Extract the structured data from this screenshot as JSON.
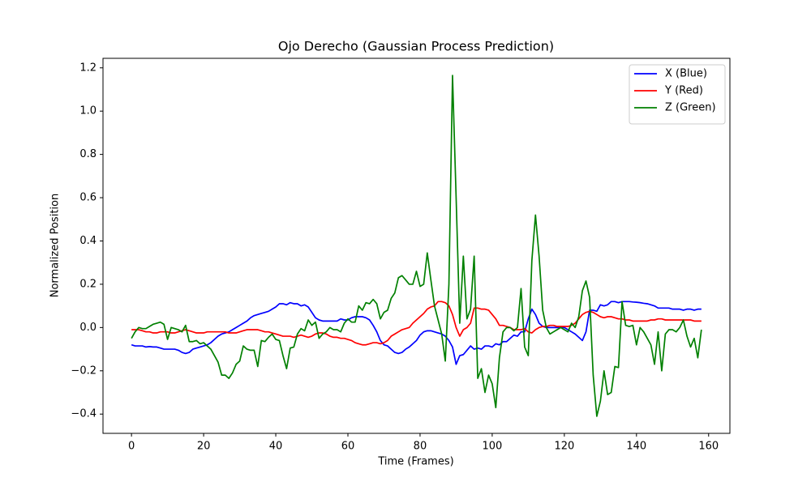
{
  "chart_data": {
    "type": "line",
    "title": "Ojo Derecho (Gaussian Process Prediction)",
    "x_label": "Time (Frames)",
    "y_label": "Normalized Position",
    "x": [
      0,
      1,
      2,
      3,
      4,
      5,
      6,
      7,
      8,
      9,
      10,
      11,
      12,
      13,
      14,
      15,
      16,
      17,
      18,
      19,
      20,
      21,
      22,
      23,
      24,
      25,
      26,
      27,
      28,
      29,
      30,
      31,
      32,
      33,
      34,
      35,
      36,
      37,
      38,
      39,
      40,
      41,
      42,
      43,
      44,
      45,
      46,
      47,
      48,
      49,
      50,
      51,
      52,
      53,
      54,
      55,
      56,
      57,
      58,
      59,
      60,
      61,
      62,
      63,
      64,
      65,
      66,
      67,
      68,
      69,
      70,
      71,
      72,
      73,
      74,
      75,
      76,
      77,
      78,
      79,
      80,
      81,
      82,
      83,
      84,
      85,
      86,
      87,
      88,
      89,
      90,
      91,
      92,
      93,
      94,
      95,
      96,
      97,
      98,
      99,
      100,
      101,
      102,
      103,
      104,
      105,
      106,
      107,
      108,
      109,
      110,
      111,
      112,
      113,
      114,
      115,
      116,
      117,
      118,
      119,
      120,
      121,
      122,
      123,
      124,
      125,
      126,
      127,
      128,
      129,
      130,
      131,
      132,
      133,
      134,
      135,
      136,
      137,
      138,
      139,
      140,
      141,
      142,
      143,
      144,
      145,
      146,
      147,
      148,
      149,
      150,
      151,
      152,
      153,
      154,
      155,
      156,
      157,
      158
    ],
    "series": [
      {
        "name": "X (Blue)",
        "color": "#0000ff",
        "values": [
          -0.08,
          -0.085,
          -0.085,
          -0.085,
          -0.09,
          -0.088,
          -0.09,
          -0.09,
          -0.095,
          -0.1,
          -0.1,
          -0.1,
          -0.1,
          -0.105,
          -0.115,
          -0.12,
          -0.115,
          -0.1,
          -0.095,
          -0.09,
          -0.085,
          -0.08,
          -0.07,
          -0.055,
          -0.04,
          -0.03,
          -0.025,
          -0.02,
          -0.01,
          0.0,
          0.01,
          0.02,
          0.03,
          0.045,
          0.055,
          0.06,
          0.065,
          0.07,
          0.075,
          0.085,
          0.095,
          0.11,
          0.11,
          0.105,
          0.115,
          0.11,
          0.11,
          0.1,
          0.105,
          0.095,
          0.07,
          0.045,
          0.035,
          0.03,
          0.03,
          0.03,
          0.03,
          0.03,
          0.04,
          0.035,
          0.035,
          0.045,
          0.05,
          0.05,
          0.05,
          0.045,
          0.035,
          0.01,
          -0.02,
          -0.06,
          -0.08,
          -0.085,
          -0.1,
          -0.115,
          -0.12,
          -0.115,
          -0.1,
          -0.09,
          -0.075,
          -0.06,
          -0.035,
          -0.02,
          -0.015,
          -0.015,
          -0.02,
          -0.025,
          -0.03,
          -0.04,
          -0.06,
          -0.09,
          -0.17,
          -0.13,
          -0.125,
          -0.105,
          -0.085,
          -0.1,
          -0.095,
          -0.1,
          -0.085,
          -0.085,
          -0.09,
          -0.075,
          -0.08,
          -0.065,
          -0.065,
          -0.05,
          -0.035,
          -0.04,
          -0.02,
          -0.02,
          0.04,
          0.085,
          0.06,
          0.02,
          0.005,
          0.0,
          0.0,
          0.0,
          0.0,
          0.0,
          0.0,
          -0.01,
          -0.02,
          -0.03,
          -0.045,
          -0.06,
          -0.02,
          0.08,
          0.08,
          0.075,
          0.105,
          0.1,
          0.105,
          0.12,
          0.12,
          0.115,
          0.12,
          0.12,
          0.12,
          0.118,
          0.117,
          0.115,
          0.112,
          0.11,
          0.105,
          0.1,
          0.09,
          0.09,
          0.09,
          0.09,
          0.085,
          0.085,
          0.085,
          0.08,
          0.085,
          0.085,
          0.08,
          0.085,
          0.085
        ]
      },
      {
        "name": "Y (Red)",
        "color": "#ff0000",
        "values": [
          -0.01,
          -0.01,
          -0.01,
          -0.015,
          -0.02,
          -0.02,
          -0.025,
          -0.025,
          -0.02,
          -0.02,
          -0.02,
          -0.025,
          -0.025,
          -0.02,
          -0.015,
          -0.01,
          -0.015,
          -0.02,
          -0.025,
          -0.025,
          -0.025,
          -0.02,
          -0.02,
          -0.02,
          -0.02,
          -0.02,
          -0.02,
          -0.025,
          -0.025,
          -0.025,
          -0.02,
          -0.015,
          -0.01,
          -0.01,
          -0.01,
          -0.01,
          -0.015,
          -0.02,
          -0.02,
          -0.025,
          -0.03,
          -0.035,
          -0.04,
          -0.04,
          -0.04,
          -0.045,
          -0.04,
          -0.035,
          -0.04,
          -0.045,
          -0.04,
          -0.03,
          -0.025,
          -0.025,
          -0.03,
          -0.04,
          -0.045,
          -0.045,
          -0.05,
          -0.05,
          -0.055,
          -0.06,
          -0.07,
          -0.075,
          -0.08,
          -0.08,
          -0.075,
          -0.07,
          -0.07,
          -0.075,
          -0.07,
          -0.06,
          -0.04,
          -0.03,
          -0.02,
          -0.01,
          -0.005,
          0.0,
          0.02,
          0.035,
          0.05,
          0.065,
          0.085,
          0.095,
          0.1,
          0.12,
          0.12,
          0.115,
          0.1,
          0.06,
          0.0,
          -0.04,
          -0.01,
          0.0,
          0.02,
          0.09,
          0.09,
          0.085,
          0.085,
          0.08,
          0.06,
          0.04,
          0.01,
          0.01,
          0.005,
          0.0,
          -0.01,
          -0.01,
          -0.01,
          -0.005,
          -0.02,
          -0.025,
          -0.01,
          0.0,
          0.005,
          0.005,
          0.01,
          0.01,
          0.005,
          0.005,
          0.005,
          0.005,
          0.01,
          0.02,
          0.04,
          0.06,
          0.07,
          0.075,
          0.07,
          0.06,
          0.05,
          0.045,
          0.05,
          0.05,
          0.045,
          0.04,
          0.04,
          0.035,
          0.035,
          0.03,
          0.03,
          0.03,
          0.03,
          0.03,
          0.035,
          0.035,
          0.04,
          0.04,
          0.035,
          0.035,
          0.035,
          0.035,
          0.035,
          0.035,
          0.035,
          0.035,
          0.03,
          0.03,
          0.03
        ]
      },
      {
        "name": "Z (Green)",
        "color": "#008000",
        "values": [
          -0.05,
          -0.02,
          0.0,
          -0.005,
          -0.005,
          0.005,
          0.015,
          0.02,
          0.025,
          0.015,
          -0.055,
          0.0,
          -0.005,
          -0.01,
          -0.02,
          0.01,
          -0.065,
          -0.065,
          -0.06,
          -0.075,
          -0.07,
          -0.085,
          -0.1,
          -0.13,
          -0.16,
          -0.22,
          -0.22,
          -0.235,
          -0.21,
          -0.17,
          -0.155,
          -0.085,
          -0.1,
          -0.105,
          -0.105,
          -0.18,
          -0.06,
          -0.065,
          -0.045,
          -0.03,
          -0.055,
          -0.06,
          -0.13,
          -0.19,
          -0.095,
          -0.09,
          -0.03,
          -0.005,
          -0.015,
          0.035,
          0.01,
          0.025,
          -0.05,
          -0.03,
          -0.02,
          0.0,
          -0.01,
          -0.01,
          -0.02,
          0.02,
          0.04,
          0.025,
          0.025,
          0.1,
          0.08,
          0.115,
          0.11,
          0.13,
          0.11,
          0.04,
          0.07,
          0.08,
          0.135,
          0.16,
          0.23,
          0.24,
          0.22,
          0.2,
          0.2,
          0.26,
          0.19,
          0.2,
          0.345,
          0.22,
          0.1,
          0.035,
          -0.03,
          -0.155,
          0.2,
          1.165,
          0.6,
          0.02,
          0.33,
          0.04,
          0.085,
          0.33,
          -0.235,
          -0.19,
          -0.3,
          -0.22,
          -0.26,
          -0.37,
          -0.14,
          -0.02,
          0.0,
          0.0,
          -0.015,
          0.0,
          0.18,
          -0.09,
          -0.13,
          0.31,
          0.52,
          0.33,
          0.08,
          0.0,
          -0.03,
          -0.02,
          -0.01,
          0.0,
          -0.01,
          -0.02,
          0.02,
          0.0,
          0.05,
          0.17,
          0.215,
          0.14,
          -0.22,
          -0.41,
          -0.34,
          -0.2,
          -0.31,
          -0.3,
          -0.18,
          -0.185,
          0.12,
          0.01,
          0.005,
          0.01,
          -0.08,
          0.0,
          -0.02,
          -0.05,
          -0.08,
          -0.17,
          -0.02,
          -0.2,
          -0.03,
          -0.01,
          -0.01,
          -0.02,
          0.0,
          0.035,
          -0.04,
          -0.09,
          -0.05,
          -0.14,
          -0.01
        ]
      }
    ],
    "xlim": [
      -7.9,
      165.9
    ],
    "ylim": [
      -0.489,
      1.244
    ],
    "xticks": [
      0,
      20,
      40,
      60,
      80,
      100,
      120,
      140,
      160
    ],
    "yticks": [
      {
        "value": -0.4,
        "label": "−0.4"
      },
      {
        "value": -0.2,
        "label": "−0.2"
      },
      {
        "value": 0,
        "label": "0.0"
      },
      {
        "value": 0.2,
        "label": "0.2"
      },
      {
        "value": 0.4,
        "label": "0.4"
      },
      {
        "value": 0.6,
        "label": "0.6"
      },
      {
        "value": 0.8,
        "label": "0.8"
      },
      {
        "value": 1.0,
        "label": "1.0"
      },
      {
        "value": 1.2,
        "label": "1.2"
      }
    ],
    "grid": false,
    "legend": "upper right"
  }
}
